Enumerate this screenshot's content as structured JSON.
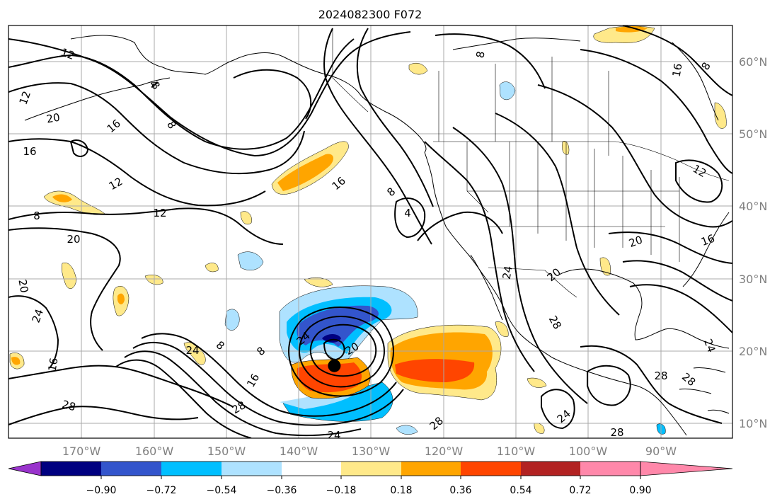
{
  "title": "2024082300 F072",
  "map": {
    "lon_ticks": [
      "170°W",
      "160°W",
      "150°W",
      "140°W",
      "130°W",
      "120°W",
      "110°W",
      "100°W",
      "90°W"
    ],
    "lat_ticks": [
      "60°N",
      "50°N",
      "40°N",
      "30°N",
      "20°N",
      "10°N"
    ],
    "lon_range": [
      -180,
      -80
    ],
    "lat_range": [
      8,
      65
    ],
    "grid": true,
    "contour_labels": [
      "12",
      "12",
      "20",
      "16",
      "16",
      "12",
      "8",
      "12",
      "20",
      "20",
      "24",
      "16",
      "28",
      "8",
      "8",
      "16",
      "8",
      "4",
      "8",
      "24",
      "28",
      "28",
      "24",
      "8",
      "16",
      "24",
      "20",
      "20",
      "24",
      "28",
      "24",
      "28",
      "28",
      "28",
      "24",
      "20",
      "16",
      "12",
      "16",
      "8",
      "8",
      "4"
    ],
    "storm_marker": {
      "lon": -135,
      "lat": 18
    }
  },
  "colorbar": {
    "tick_labels": [
      "−0.90",
      "−0.72",
      "−0.54",
      "−0.36",
      "−0.18",
      "0.18",
      "0.36",
      "0.54",
      "0.72",
      "0.90"
    ],
    "colors": [
      "#9933cc",
      "#000080",
      "#3355cc",
      "#00bfff",
      "#aee2ff",
      "#ffffff",
      "#ffe98a",
      "#ffa500",
      "#ff4500",
      "#b22222",
      "#ff88aa"
    ]
  }
}
